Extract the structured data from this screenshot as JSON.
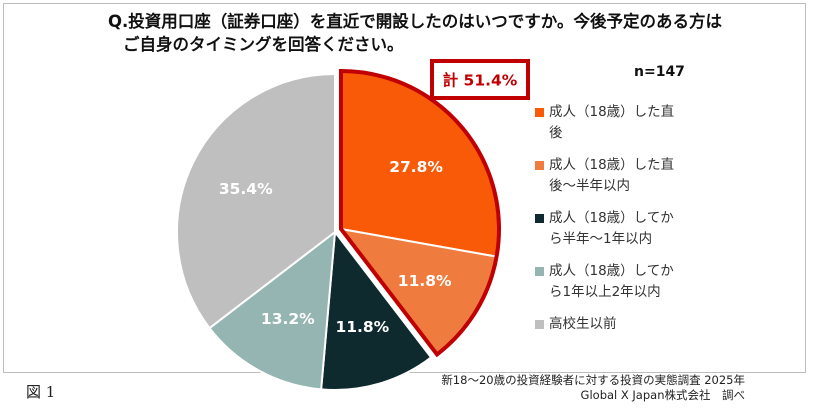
{
  "chart_data": {
    "type": "pie",
    "title_line1": "Q.投資用口座（証券口座）を直近で開設したのはいつですか。今後予定のある方は",
    "title_line2": "ご自身のタイミングを回答ください。",
    "n_label": "n=147",
    "highlight_label": "計 51.4%",
    "slices": [
      {
        "name_line1": "成人（18歳）した直",
        "name_line2": "後",
        "value": 27.8,
        "label": "27.8%",
        "color": "#F85A07",
        "text_color": "#ffffff"
      },
      {
        "name_line1": "成人（18歳）した直",
        "name_line2": "後～半年以内",
        "value": 11.8,
        "label": "11.8%",
        "color": "#EF7B3E",
        "text_color": "#ffffff"
      },
      {
        "name_line1": "成人（18歳）してか",
        "name_line2": "ら半年～1年以内",
        "value": 11.8,
        "label": "11.8%",
        "color": "#0F2A2E",
        "text_color": "#ffffff"
      },
      {
        "name_line1": "成人（18歳）してか",
        "name_line2": "ら1年以上2年以内",
        "value": 13.2,
        "label": "13.2%",
        "color": "#94B5B1",
        "text_color": "#ffffff"
      },
      {
        "name_line1": "高校生以前",
        "name_line2": "",
        "value": 35.4,
        "label": "35.4%",
        "color": "#BFBFBF",
        "text_color": "#ffffff"
      }
    ],
    "highlight_color": "#C00000"
  },
  "source_line1": "新18～20歳の投資経験者に対する投資の実態調査 2025年",
  "source_line2": "Global X Japan株式会社　調べ",
  "figure_label": "図 1"
}
